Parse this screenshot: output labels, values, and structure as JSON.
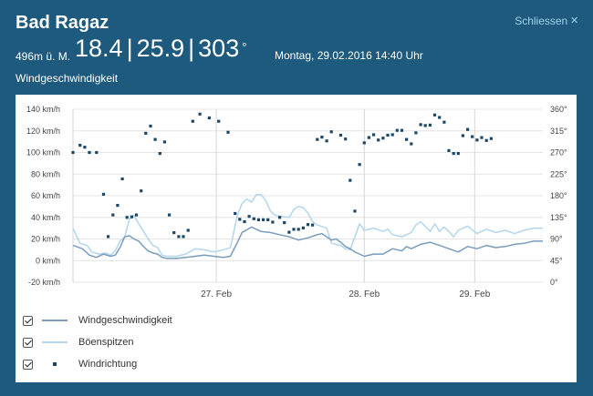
{
  "header": {
    "station": "Bad Ragaz",
    "close_label": "Schliessen",
    "close_icon": "close-icon",
    "altitude": "496m ü. M.",
    "reading_1": "18.4",
    "reading_2": "25.9",
    "reading_3": "303",
    "separator": "|",
    "degree_symbol": "°",
    "datetime": "Montag, 29.02.2016 14:40 Uhr",
    "section_title": "Windgeschwindigkeit"
  },
  "chart_data": {
    "type": "line",
    "title": "Windgeschwindigkeit",
    "ylim": [
      -20,
      140
    ],
    "y_ticks": [
      "-20 km/h",
      "0 km/h",
      "20 km/h",
      "40 km/h",
      "60 km/h",
      "80 km/h",
      "100 km/h",
      "120 km/h",
      "140 km/h"
    ],
    "y2lim": [
      0,
      360
    ],
    "y2_ticks": [
      "0°",
      "45°",
      "90°",
      "135°",
      "180°",
      "225°",
      "270°",
      "315°",
      "360°"
    ],
    "xlim": [
      0,
      100
    ],
    "x_ticks": [
      {
        "x": 30.5,
        "label": "27. Feb"
      },
      {
        "x": 62,
        "label": "28. Feb"
      },
      {
        "x": 85.5,
        "label": "29. Feb"
      }
    ],
    "x_gridlines": [
      0,
      30.5,
      62,
      85.5
    ],
    "series": [
      {
        "name": "Windgeschwindigkeit",
        "color": "#7a9cbd",
        "points": [
          [
            0,
            14
          ],
          [
            2,
            11
          ],
          [
            3.5,
            5
          ],
          [
            5,
            3
          ],
          [
            6.5,
            6
          ],
          [
            8,
            4
          ],
          [
            9,
            5
          ],
          [
            10,
            12
          ],
          [
            11,
            22
          ],
          [
            12,
            23
          ],
          [
            13,
            20
          ],
          [
            14,
            18
          ],
          [
            15,
            13
          ],
          [
            16,
            9
          ],
          [
            17,
            7
          ],
          [
            18,
            6
          ],
          [
            19,
            3
          ],
          [
            20,
            2
          ],
          [
            22,
            2
          ],
          [
            24,
            3
          ],
          [
            26,
            4
          ],
          [
            28,
            5
          ],
          [
            30,
            4
          ],
          [
            32,
            3
          ],
          [
            33.5,
            4
          ],
          [
            35,
            17
          ],
          [
            36,
            26
          ],
          [
            38,
            31
          ],
          [
            40,
            27
          ],
          [
            42,
            26
          ],
          [
            44,
            24
          ],
          [
            46,
            22
          ],
          [
            48,
            19
          ],
          [
            50,
            21
          ],
          [
            52,
            24
          ],
          [
            53,
            25
          ],
          [
            54,
            22
          ],
          [
            55,
            19
          ],
          [
            56,
            20
          ],
          [
            57,
            17
          ],
          [
            58,
            13
          ],
          [
            59,
            11
          ],
          [
            60,
            8
          ],
          [
            62,
            4
          ],
          [
            64,
            6
          ],
          [
            66,
            6
          ],
          [
            68,
            11
          ],
          [
            70,
            9
          ],
          [
            71,
            13
          ],
          [
            72,
            11
          ],
          [
            74,
            15
          ],
          [
            76,
            17
          ],
          [
            78,
            14
          ],
          [
            80,
            11
          ],
          [
            82,
            8
          ],
          [
            84,
            13
          ],
          [
            86,
            11
          ],
          [
            88,
            14
          ],
          [
            90,
            12
          ],
          [
            92,
            13
          ],
          [
            94,
            15
          ],
          [
            96,
            16
          ],
          [
            98,
            18
          ],
          [
            100,
            18
          ]
        ]
      },
      {
        "name": "Böenspitzen",
        "color": "#b3d6ee",
        "points": [
          [
            0,
            30
          ],
          [
            1.5,
            16
          ],
          [
            3,
            14
          ],
          [
            4,
            8
          ],
          [
            5.5,
            6
          ],
          [
            7,
            7
          ],
          [
            8,
            5
          ],
          [
            9,
            9
          ],
          [
            10,
            18
          ],
          [
            11,
            22
          ],
          [
            12,
            38
          ],
          [
            13,
            42
          ],
          [
            14,
            34
          ],
          [
            15,
            27
          ],
          [
            16,
            20
          ],
          [
            17,
            14
          ],
          [
            18,
            12
          ],
          [
            19,
            5
          ],
          [
            20,
            4
          ],
          [
            22,
            4
          ],
          [
            24,
            6
          ],
          [
            26,
            11
          ],
          [
            28,
            10
          ],
          [
            30,
            8
          ],
          [
            32,
            10
          ],
          [
            33.5,
            12
          ],
          [
            35,
            42
          ],
          [
            36,
            53
          ],
          [
            37,
            57
          ],
          [
            38,
            54
          ],
          [
            39,
            61
          ],
          [
            40,
            61
          ],
          [
            41,
            56
          ],
          [
            42,
            46
          ],
          [
            43,
            42
          ],
          [
            44,
            41
          ],
          [
            46,
            40
          ],
          [
            47,
            47
          ],
          [
            48,
            50
          ],
          [
            49,
            49
          ],
          [
            50,
            44
          ],
          [
            51,
            36
          ],
          [
            52,
            33
          ],
          [
            54,
            30
          ],
          [
            55,
            16
          ],
          [
            57,
            14
          ],
          [
            58,
            11
          ],
          [
            59,
            10
          ],
          [
            60,
            22
          ],
          [
            61,
            34
          ],
          [
            62,
            28
          ],
          [
            64,
            30
          ],
          [
            66,
            27
          ],
          [
            67,
            29
          ],
          [
            68,
            24
          ],
          [
            70,
            22
          ],
          [
            72,
            26
          ],
          [
            73,
            33
          ],
          [
            74,
            36
          ],
          [
            76,
            27
          ],
          [
            77,
            34
          ],
          [
            78,
            27
          ],
          [
            79,
            31
          ],
          [
            80,
            27
          ],
          [
            81,
            22
          ],
          [
            82,
            28
          ],
          [
            84,
            32
          ],
          [
            86,
            25
          ],
          [
            88,
            29
          ],
          [
            90,
            26
          ],
          [
            92,
            28
          ],
          [
            94,
            25
          ],
          [
            96,
            28
          ],
          [
            98,
            30
          ],
          [
            100,
            30
          ]
        ]
      },
      {
        "name": "Windrichtung",
        "color": "#1b4869",
        "axis": "right",
        "points": [
          [
            0,
            270
          ],
          [
            1.5,
            285
          ],
          [
            2.5,
            281
          ],
          [
            3.5,
            270
          ],
          [
            5,
            270
          ],
          [
            6.5,
            183
          ],
          [
            7.5,
            95
          ],
          [
            8.5,
            140
          ],
          [
            9.5,
            160
          ],
          [
            10.5,
            215
          ],
          [
            11.5,
            135
          ],
          [
            12.5,
            136
          ],
          [
            13.5,
            140
          ],
          [
            14.5,
            190
          ],
          [
            15.5,
            310
          ],
          [
            16.5,
            325
          ],
          [
            17.5,
            297
          ],
          [
            18.5,
            268
          ],
          [
            19.5,
            292
          ],
          [
            20.5,
            140
          ],
          [
            21.5,
            103
          ],
          [
            22.5,
            95
          ],
          [
            23.5,
            95
          ],
          [
            24.5,
            108
          ],
          [
            25.5,
            335
          ],
          [
            27,
            350
          ],
          [
            29,
            342
          ],
          [
            31,
            335
          ],
          [
            33,
            312
          ],
          [
            34.5,
            143
          ],
          [
            35.5,
            131
          ],
          [
            36.5,
            126
          ],
          [
            37.5,
            137
          ],
          [
            38.5,
            132
          ],
          [
            39.5,
            130
          ],
          [
            40.5,
            130
          ],
          [
            41.5,
            130
          ],
          [
            42.5,
            125
          ],
          [
            44,
            135
          ],
          [
            45,
            124
          ],
          [
            46,
            104
          ],
          [
            47,
            110
          ],
          [
            48,
            110
          ],
          [
            49,
            113
          ],
          [
            50,
            120
          ],
          [
            51,
            119
          ],
          [
            52,
            297
          ],
          [
            53,
            302
          ],
          [
            54,
            294
          ],
          [
            55,
            313
          ],
          [
            57,
            306
          ],
          [
            58,
            298
          ],
          [
            59,
            212
          ],
          [
            60,
            148
          ],
          [
            61,
            245
          ],
          [
            62,
            290
          ],
          [
            63,
            301
          ],
          [
            64,
            307
          ],
          [
            65,
            296
          ],
          [
            66,
            300
          ],
          [
            67,
            306
          ],
          [
            68,
            307
          ],
          [
            69,
            316
          ],
          [
            70,
            316
          ],
          [
            71,
            297
          ],
          [
            72,
            288
          ],
          [
            73,
            311
          ],
          [
            74,
            328
          ],
          [
            75,
            326
          ],
          [
            76,
            327
          ],
          [
            77,
            348
          ],
          [
            78,
            343
          ],
          [
            79,
            333
          ],
          [
            80,
            274
          ],
          [
            81,
            268
          ],
          [
            82,
            268
          ],
          [
            83,
            305
          ],
          [
            84,
            318
          ],
          [
            85,
            303
          ],
          [
            86,
            296
          ],
          [
            87,
            301
          ],
          [
            88,
            295
          ],
          [
            89,
            299
          ]
        ]
      }
    ],
    "legend": [
      {
        "label": "Windgeschwindigkeit",
        "marker": "line",
        "checked": true
      },
      {
        "label": "Böenspitzen",
        "marker": "line",
        "checked": true
      },
      {
        "label": "Windrichtung",
        "marker": "dot",
        "checked": true
      }
    ]
  }
}
